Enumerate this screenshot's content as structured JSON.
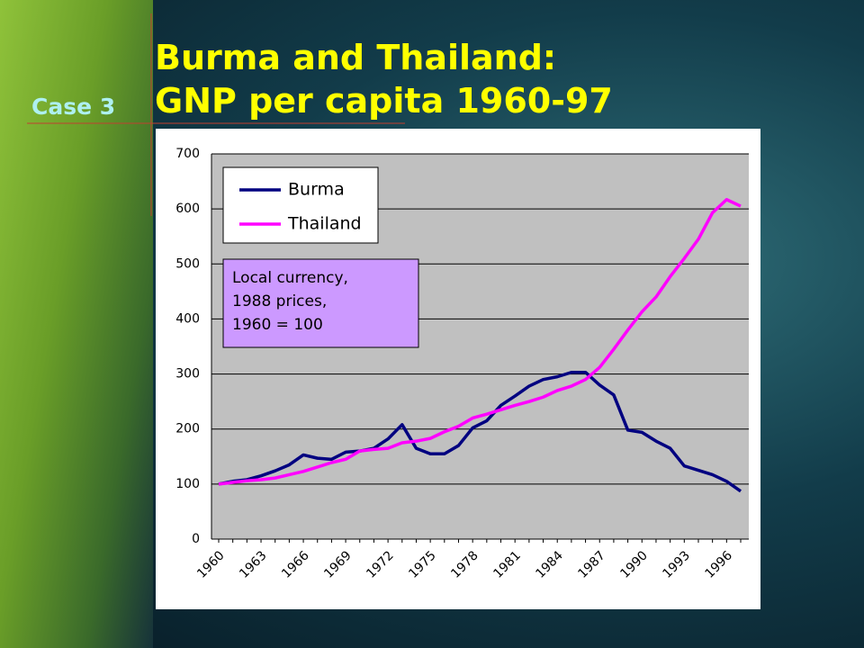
{
  "slide": {
    "title_lines": [
      "Burma and Thailand:",
      "GNP per capita 1960-97"
    ],
    "case_label": "Case 3"
  },
  "chart_data": {
    "type": "line",
    "categories": [
      "1960",
      null,
      null,
      "1963",
      null,
      null,
      "1966",
      null,
      null,
      "1969",
      null,
      null,
      "1972",
      null,
      null,
      "1975",
      null,
      null,
      "1978",
      null,
      null,
      "1981",
      null,
      null,
      "1984",
      null,
      null,
      "1987",
      null,
      null,
      "1990",
      null,
      null,
      "1993",
      null,
      null,
      "1996",
      null
    ],
    "series": [
      {
        "name": "Burma",
        "color": "#000080",
        "values": [
          100,
          105,
          108,
          115,
          124,
          135,
          153,
          147,
          145,
          158,
          160,
          165,
          182,
          208,
          165,
          155,
          155,
          170,
          202,
          215,
          243,
          260,
          278,
          290,
          295,
          303,
          303,
          280,
          262,
          198,
          194,
          178,
          165,
          133,
          125,
          117,
          105,
          87
        ]
      },
      {
        "name": "Thailand",
        "color": "#ff00ff",
        "values": [
          100,
          103,
          106,
          108,
          111,
          117,
          123,
          131,
          139,
          145,
          160,
          163,
          165,
          175,
          178,
          183,
          195,
          205,
          220,
          227,
          235,
          243,
          250,
          258,
          270,
          278,
          290,
          312,
          345,
          380,
          413,
          440,
          477,
          510,
          545,
          593,
          617,
          605
        ]
      }
    ],
    "annotation_lines": [
      "Local currency,",
      "1988 prices,",
      "1960 = 100"
    ],
    "ylim": [
      0,
      700
    ],
    "yticks": [
      0,
      100,
      200,
      300,
      400,
      500,
      600,
      700
    ],
    "grid": true
  }
}
